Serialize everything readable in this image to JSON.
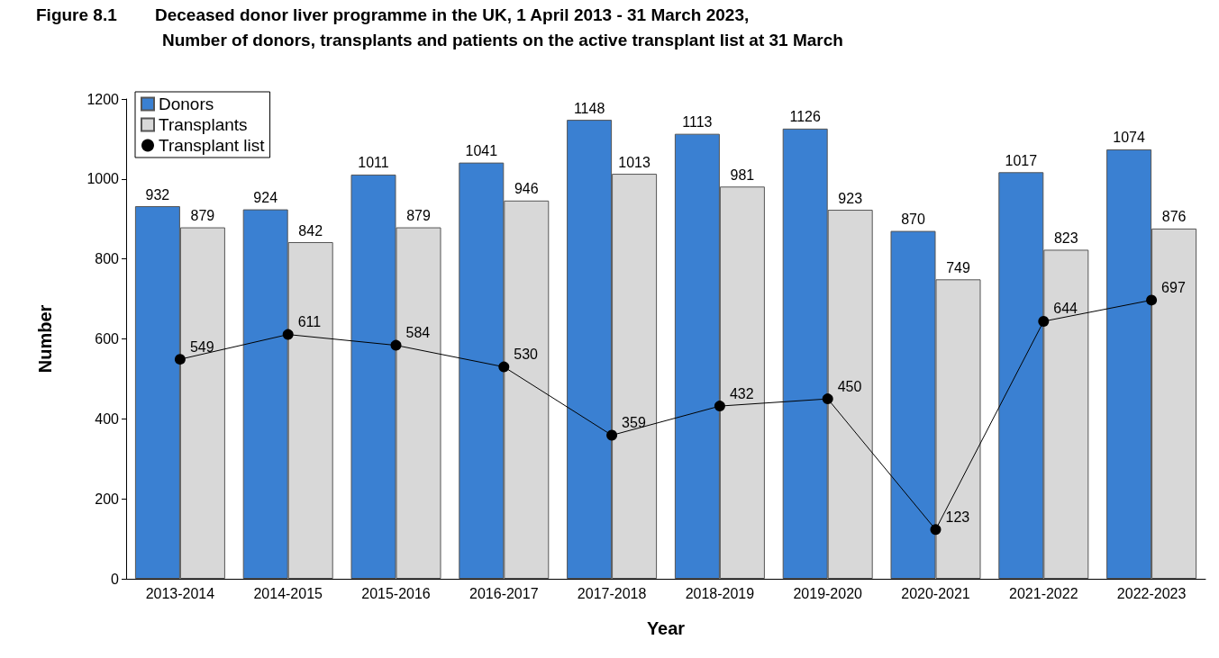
{
  "chart_data": {
    "type": "bar",
    "title": "Figure 8.1        Deceased donor liver programme in the UK, 1 April 2013 - 31 March 2023,",
    "subtitle": "Number of donors, transplants and patients on the active transplant list at 31 March",
    "xlabel": "Year",
    "ylabel": "Number",
    "categories": [
      "2013-2014",
      "2014-2015",
      "2015-2016",
      "2016-2017",
      "2017-2018",
      "2018-2019",
      "2019-2020",
      "2020-2021",
      "2021-2022",
      "2022-2023"
    ],
    "series": [
      {
        "name": "Donors",
        "color": "#3a80d2",
        "values": [
          932,
          924,
          1011,
          1041,
          1148,
          1113,
          1126,
          870,
          1017,
          1074
        ]
      },
      {
        "name": "Transplants",
        "color": "#d8d8d8",
        "values": [
          879,
          842,
          879,
          946,
          1013,
          981,
          923,
          749,
          823,
          876
        ]
      },
      {
        "name": "Transplant list",
        "type": "line",
        "color": "#000000",
        "values": [
          549,
          611,
          584,
          530,
          359,
          432,
          450,
          123,
          644,
          697
        ]
      }
    ],
    "ylim": [
      0,
      1200
    ],
    "yticks": [
      0,
      200,
      400,
      600,
      800,
      1000,
      1200
    ],
    "grid": false,
    "legend": "top left",
    "marker": "circle",
    "line_style": "solid",
    "data_labels": true
  }
}
